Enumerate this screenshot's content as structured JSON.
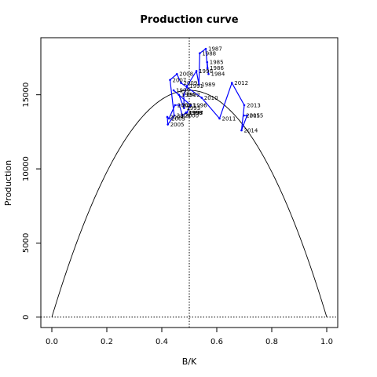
{
  "chart_data": {
    "type": "line",
    "title": "Production curve",
    "xlabel": "B/K",
    "ylabel": "Production",
    "xlim": [
      -0.04,
      1.04
    ],
    "ylim": [
      -700,
      18850
    ],
    "x_ticks": [
      "0.0",
      "0.2",
      "0.4",
      "0.6",
      "0.8",
      "1.0"
    ],
    "x_tick_values": [
      0.0,
      0.2,
      0.4,
      0.6,
      0.8,
      1.0
    ],
    "y_ticks": [
      "0",
      "5000",
      "10000",
      "15000"
    ],
    "y_tick_values": [
      0,
      5000,
      10000,
      15000
    ],
    "curve": {
      "type": "parabola",
      "msy": 15300,
      "bmsy_fraction": 0.5
    },
    "reference_lines": [
      {
        "orientation": "vertical",
        "value": 0.5,
        "style": "dotted"
      },
      {
        "orientation": "horizontal",
        "value": 0,
        "style": "dotted"
      }
    ],
    "series": [
      {
        "color": "#0000ff",
        "points": [
          {
            "x": 0.57,
            "y": 16400,
            "label": "1984"
          },
          {
            "x": 0.565,
            "y": 17200,
            "label": "1985"
          },
          {
            "x": 0.566,
            "y": 16800,
            "label": "1986"
          },
          {
            "x": 0.56,
            "y": 18100,
            "label": "1987"
          },
          {
            "x": 0.538,
            "y": 17800,
            "label": "1988"
          },
          {
            "x": 0.535,
            "y": 15700,
            "label": "1989"
          },
          {
            "x": 0.526,
            "y": 16600,
            "label": "1990"
          },
          {
            "x": 0.492,
            "y": 15600,
            "label": "1991"
          },
          {
            "x": 0.48,
            "y": 15000,
            "label": "1992"
          },
          {
            "x": 0.481,
            "y": 14100,
            "label": "1993"
          },
          {
            "x": 0.462,
            "y": 15000,
            "label": "1994"
          },
          {
            "x": 0.443,
            "y": 15300,
            "label": "1995"
          },
          {
            "x": 0.505,
            "y": 14300,
            "label": "1996"
          },
          {
            "x": 0.491,
            "y": 13800,
            "label": "1997"
          },
          {
            "x": 0.49,
            "y": 13800,
            "label": "1998"
          },
          {
            "x": 0.488,
            "y": 13800,
            "label": "1999"
          },
          {
            "x": 0.475,
            "y": 13600,
            "label": "2000"
          },
          {
            "x": 0.464,
            "y": 14300,
            "label": "2001"
          },
          {
            "x": 0.448,
            "y": 14300,
            "label": "2002"
          },
          {
            "x": 0.426,
            "y": 13400,
            "label": "2003"
          },
          {
            "x": 0.42,
            "y": 13500,
            "label": "2004"
          },
          {
            "x": 0.422,
            "y": 13000,
            "label": "2005"
          },
          {
            "x": 0.445,
            "y": 13600,
            "label": "2006"
          },
          {
            "x": 0.43,
            "y": 16000,
            "label": "2007"
          },
          {
            "x": 0.455,
            "y": 16400,
            "label": "2008"
          },
          {
            "x": 0.47,
            "y": 15800,
            "label": "2009"
          },
          {
            "x": 0.545,
            "y": 14800,
            "label": "2010"
          },
          {
            "x": 0.61,
            "y": 13400,
            "label": "2011"
          },
          {
            "x": 0.655,
            "y": 15800,
            "label": "2012"
          },
          {
            "x": 0.7,
            "y": 14300,
            "label": "2013"
          },
          {
            "x": 0.69,
            "y": 12600,
            "label": "2014"
          },
          {
            "x": 0.71,
            "y": 13600,
            "label": "2015"
          },
          {
            "x": 0.698,
            "y": 13600,
            "label": "2015"
          }
        ]
      }
    ]
  },
  "colors": {
    "series": "#0000ff",
    "curve": "#000000",
    "axes": "#000000",
    "background": "#ffffff"
  }
}
